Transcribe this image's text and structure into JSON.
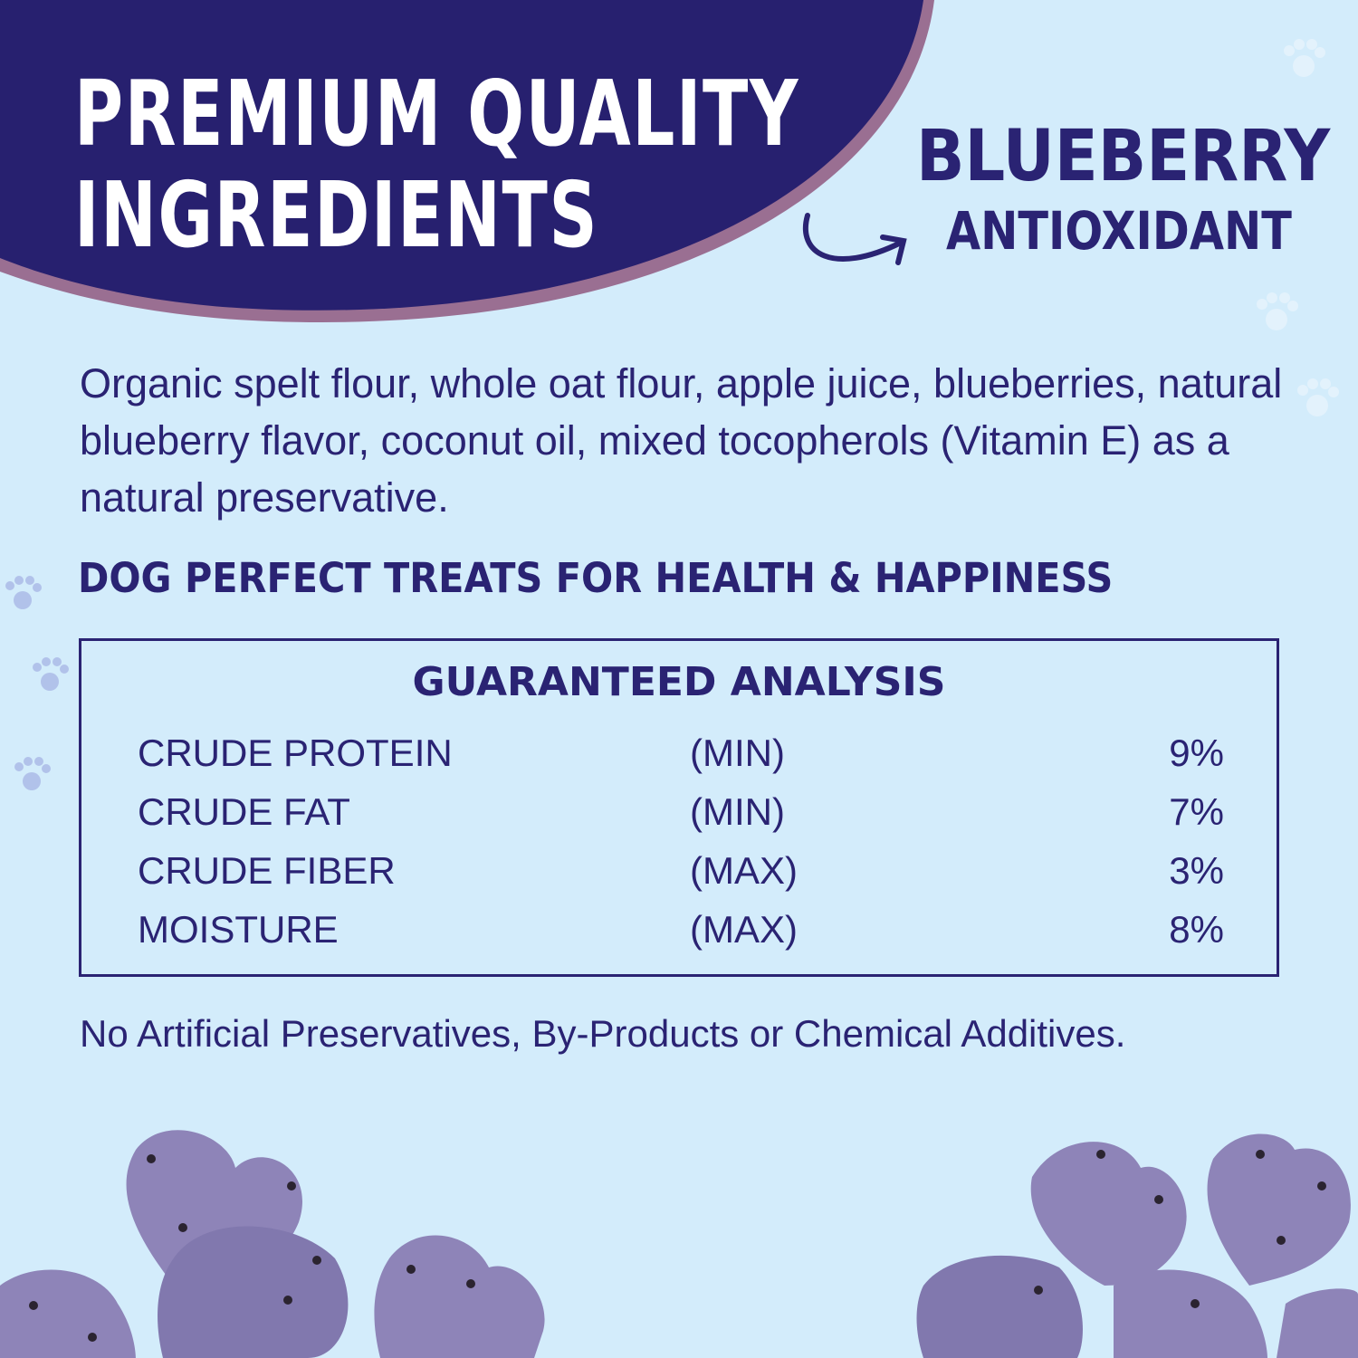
{
  "headline": {
    "line1": "PREMIUM QUALITY",
    "line2": "INGREDIENTS"
  },
  "callout": {
    "line1": "BLUEBERRY",
    "line2": "ANTIOXIDANT",
    "icon": "curved-arrow-icon"
  },
  "ingredients": "Organic spelt flour, whole oat flour, apple juice, blueberries, natural blueberry flavor, coconut oil, mixed tocopherols (Vitamin E) as a natural preservative.",
  "tagline": "DOG PERFECT TREATS FOR HEALTH & HAPPINESS",
  "analysis": {
    "title": "GUARANTEED ANALYSIS",
    "rows": [
      {
        "name": "CRUDE PROTEIN",
        "qualifier": "(MIN)",
        "value": "9%"
      },
      {
        "name": "CRUDE FAT",
        "qualifier": "(MIN)",
        "value": "7%"
      },
      {
        "name": "CRUDE FIBER",
        "qualifier": "(MAX)",
        "value": "3%"
      },
      {
        "name": "MOISTURE",
        "qualifier": "(MAX)",
        "value": "8%"
      }
    ]
  },
  "footer": "No Artificial Preservatives, By-Products or Chemical Additives.",
  "colors": {
    "navy": "#27206f",
    "edge": "#9a6f92",
    "background": "#d3ecfb",
    "treat": "#8e84b8"
  }
}
